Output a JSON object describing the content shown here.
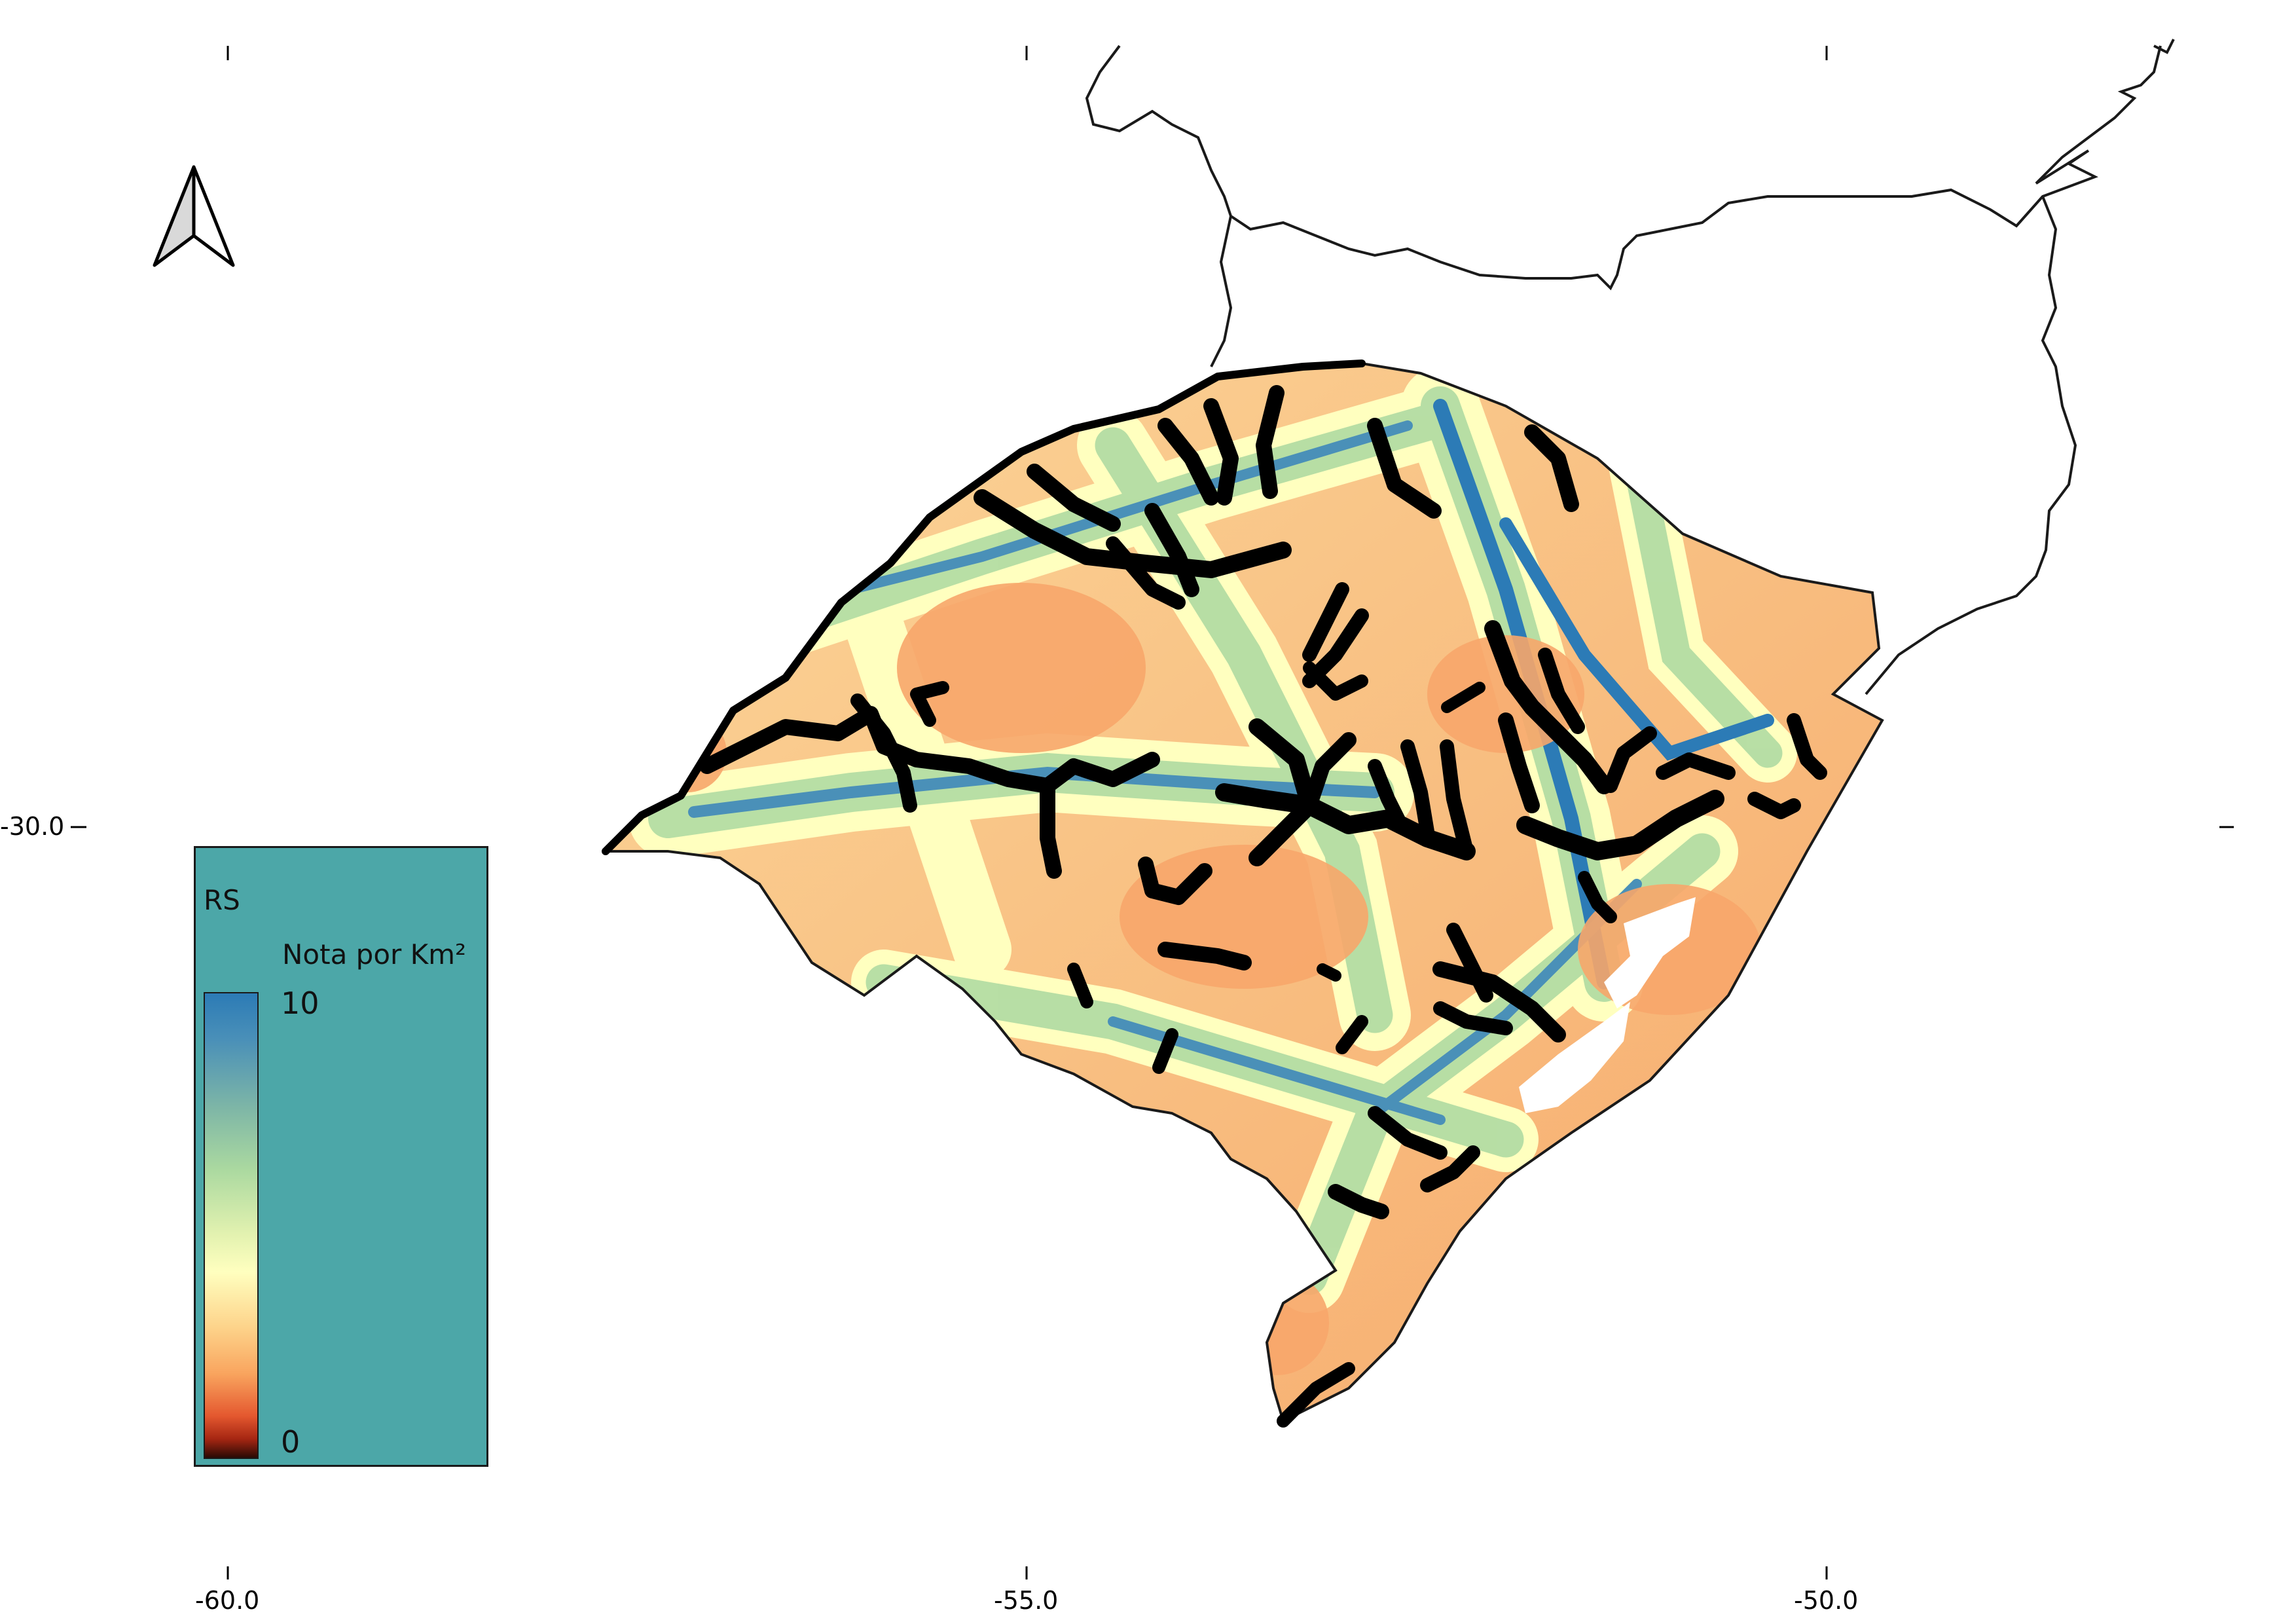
{
  "map": {
    "x_ticks": [
      "-60.0",
      "-55.0",
      "-50.0"
    ],
    "y_ticks": [
      "-30.0"
    ],
    "north_arrow_icon": "north-arrow-icon"
  },
  "legend": {
    "title": "RS",
    "subtitle": "Nota por Km²",
    "max_label": "10",
    "min_label": "0",
    "background_color": "#4ca7a8",
    "ramp_colors": [
      "#2c7bb6",
      "#abd9a0",
      "#ffffbf",
      "#f9a45e",
      "#e4582f",
      "#2a0a05"
    ]
  },
  "colors": {
    "high": "#2c7bb6",
    "mid": "#ffffbf",
    "low": "#f4a261",
    "rivers": "#000000",
    "outline": "#1a1a1a"
  }
}
